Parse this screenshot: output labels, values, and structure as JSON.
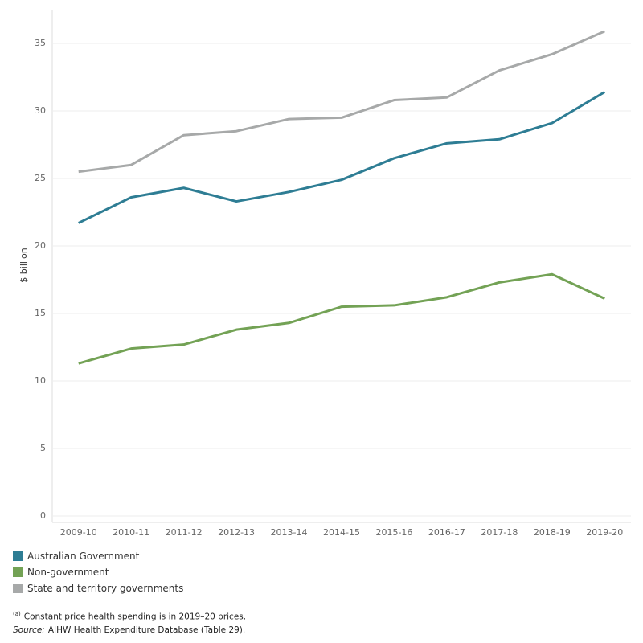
{
  "chart_data": {
    "type": "line",
    "y_label": "$ billion",
    "categories": [
      "2009-10",
      "2010-11",
      "2011-12",
      "2012-13",
      "2013-14",
      "2014-15",
      "2015-16",
      "2016-17",
      "2017-18",
      "2018-19",
      "2019-20"
    ],
    "series": [
      {
        "name": "Australian Government",
        "color": "#2e7d94",
        "values": [
          21.7,
          23.6,
          24.3,
          23.3,
          24.0,
          24.9,
          26.5,
          27.6,
          27.9,
          29.1,
          31.4
        ]
      },
      {
        "name": "Non-government",
        "color": "#73a255",
        "values": [
          11.3,
          12.4,
          12.7,
          13.8,
          14.3,
          15.5,
          15.6,
          16.2,
          17.3,
          17.9,
          16.1
        ]
      },
      {
        "name": "State and territory governments",
        "color": "#a7a9a9",
        "values": [
          25.5,
          26.0,
          28.2,
          28.5,
          29.4,
          29.5,
          30.8,
          31.0,
          33.0,
          34.2,
          35.9
        ]
      }
    ],
    "ylim": [
      0,
      37.5
    ],
    "yticks": [
      0,
      5,
      10,
      15,
      20,
      25,
      30,
      35
    ],
    "grid": true,
    "legend": "bottom-left",
    "note": {
      "marker": "(a)",
      "text": "Constant price health spending is in 2019–20 prices."
    },
    "source": {
      "label": "Source:",
      "text": "AIHW Health Expenditure Database (Table 29)."
    }
  }
}
